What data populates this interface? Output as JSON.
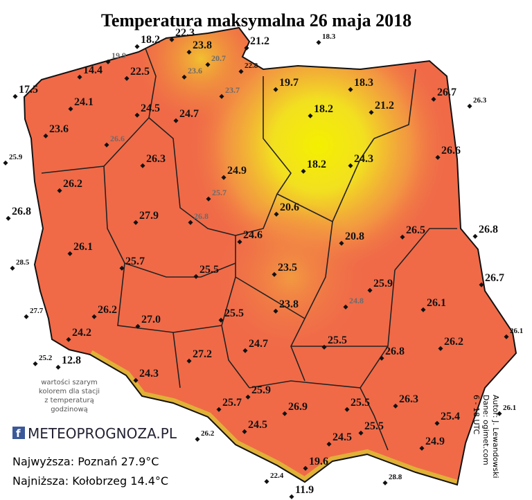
{
  "title": "Temperatura maksymalna 26 maja 2018",
  "stations": [
    "18.2",
    "22.3",
    "23.8",
    "21.2",
    "18.3",
    "14.4",
    "22.5",
    "22.8",
    "17.5",
    "24.1",
    "19.7",
    "18.3",
    "26.7",
    "26.3",
    "24.5",
    "24.7",
    "18.2",
    "21.2",
    "23.6",
    "26.6",
    "25.9",
    "26.3",
    "24.9",
    "18.2",
    "24.3",
    "26.2",
    "20.6",
    "26.8",
    "27.9",
    "26.5",
    "26.8",
    "24.6",
    "20.8",
    "26.1",
    "28.5",
    "25.7",
    "25.5",
    "23.5",
    "25.9",
    "26.7",
    "27.7",
    "26.2",
    "27.0",
    "25.5",
    "23.8",
    "26.1",
    "26.1",
    "24.2",
    "25.5",
    "26.2",
    "24.7",
    "26.8",
    "25.2",
    "12.8",
    "27.2",
    "24.3",
    "25.9",
    "25.7",
    "26.9",
    "25.5",
    "26.3",
    "26.1",
    "25.4",
    "24.5",
    "25.5",
    "26.2",
    "24.5",
    "24.9",
    "19.6",
    "22.4",
    "11.9",
    "28.8"
  ],
  "hourly_stations": [
    "19.9",
    "20.7",
    "23.6",
    "23.7",
    "26.6",
    "25.7",
    "26.8",
    "24.8"
  ],
  "note": [
    "wartości szarym",
    "kolorem dla stacji",
    "z temperaturą",
    "godzinową"
  ],
  "logo": "METEOPROGNOZA.PL",
  "highest": "Najwyższa: Poznań 27.9°C",
  "lowest": "Najniższa: Kołobrzeg 14.4°C",
  "credits": [
    "Autor: J. Lewandowski",
    "Dane: ogimet.com",
    "6 - 18 UTC"
  ]
}
